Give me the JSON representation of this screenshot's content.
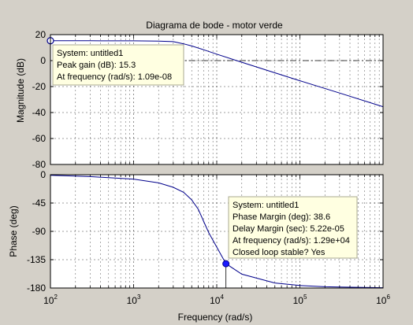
{
  "chart_data": [
    {
      "type": "line",
      "title": "Diagrama de bode - motor verde",
      "xlabel": "",
      "ylabel": "Magnitude (dB)",
      "xscale": "log",
      "xlim": [
        100,
        1000000
      ],
      "ylim": [
        -80,
        20
      ],
      "yticks": [
        20,
        0,
        -20,
        -40,
        -60,
        -80
      ],
      "grid": true,
      "reference_line": {
        "y": 0,
        "style": "dash-dot"
      },
      "series": [
        {
          "color": "#00008b",
          "x": [
            100,
            300,
            1000,
            2000,
            3000,
            4000,
            5000,
            7000,
            10000,
            20000,
            50000,
            100000,
            300000,
            1000000
          ],
          "y": [
            15.3,
            15.3,
            15.2,
            15.0,
            14.6,
            12.9,
            11.3,
            8.3,
            5.0,
            -1.3,
            -9.4,
            -15.5,
            -25.0,
            -35.5
          ]
        }
      ],
      "marker": {
        "x": 100,
        "y": 15.3,
        "style": "open-circle"
      },
      "datatip": {
        "lines": [
          "System: untitled1",
          "Peak gain (dB): 15.3",
          "At frequency (rad/s): 1.09e-08"
        ]
      }
    },
    {
      "type": "line",
      "title": "",
      "xlabel": "Frequency  (rad/s)",
      "ylabel": "Phase (deg)",
      "xscale": "log",
      "xlim": [
        100,
        1000000
      ],
      "ylim": [
        -180,
        0
      ],
      "yticks": [
        0,
        -45,
        -90,
        -135,
        -180
      ],
      "xticks": [
        100,
        1000,
        10000,
        100000,
        1000000
      ],
      "xtick_labels": [
        {
          "base": "10",
          "exp": "2"
        },
        {
          "base": "10",
          "exp": "3"
        },
        {
          "base": "10",
          "exp": "4"
        },
        {
          "base": "10",
          "exp": "5"
        },
        {
          "base": "10",
          "exp": "6"
        }
      ],
      "grid": true,
      "series": [
        {
          "color": "#00008b",
          "x": [
            100,
            300,
            1000,
            2000,
            3000,
            4000,
            5000,
            6000,
            7000,
            8000,
            10000,
            12900,
            20000,
            50000,
            100000,
            200000,
            300000,
            1000000
          ],
          "y": [
            -1,
            -3,
            -7,
            -13,
            -20,
            -28,
            -40,
            -55,
            -75,
            -92,
            -115,
            -141.4,
            -158,
            -172,
            -176,
            -178,
            -178.5,
            -179.5
          ]
        }
      ],
      "marker": {
        "x": 12900,
        "y": -141.4,
        "style": "filled-circle"
      },
      "datatip": {
        "lines": [
          "System: untitled1",
          "Phase Margin (deg): 38.6",
          "Delay Margin (sec): 5.22e-05",
          "At frequency (rad/s): 1.29e+04",
          "Closed loop stable? Yes"
        ]
      }
    }
  ]
}
